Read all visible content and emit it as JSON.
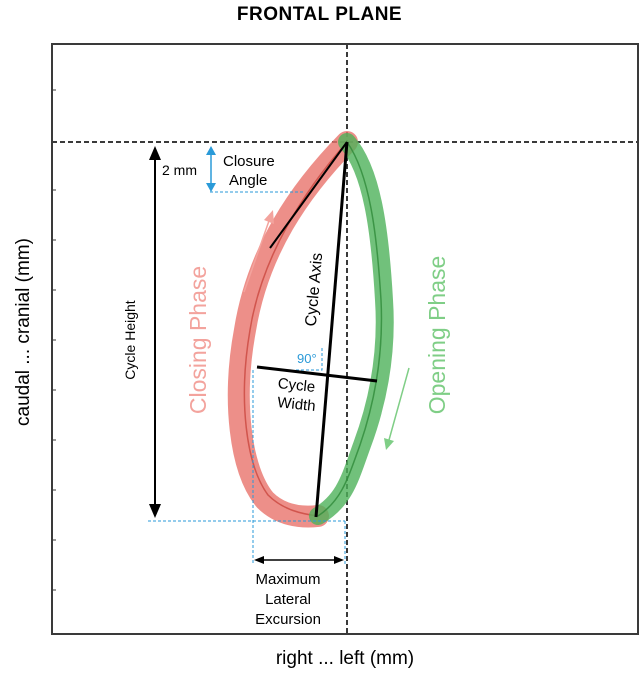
{
  "title": "FRONTAL PLANE",
  "axes": {
    "x_label": "right  ...  left (mm)",
    "y_label": "caudal ... cranial (mm)"
  },
  "labels": {
    "scale": "2 mm",
    "closure_1": "Closure",
    "closure_2": "Angle",
    "cycle_height": "Cycle Height",
    "cycle_axis": "Cycle Axis",
    "angle": "90°",
    "width_1": "Cycle",
    "width_2": "Width",
    "closing_phase": "Closing Phase",
    "opening_phase": "Opening Phase",
    "excursion_1": "Maximum",
    "excursion_2": "Lateral",
    "excursion_3": "Excursion"
  },
  "colors": {
    "closing": "#e8736b",
    "closing_text": "#f3a39d",
    "opening": "#4eb25a",
    "opening_text": "#7fce86",
    "guide": "#2a9ad8",
    "frame": "#3a3a3a"
  }
}
